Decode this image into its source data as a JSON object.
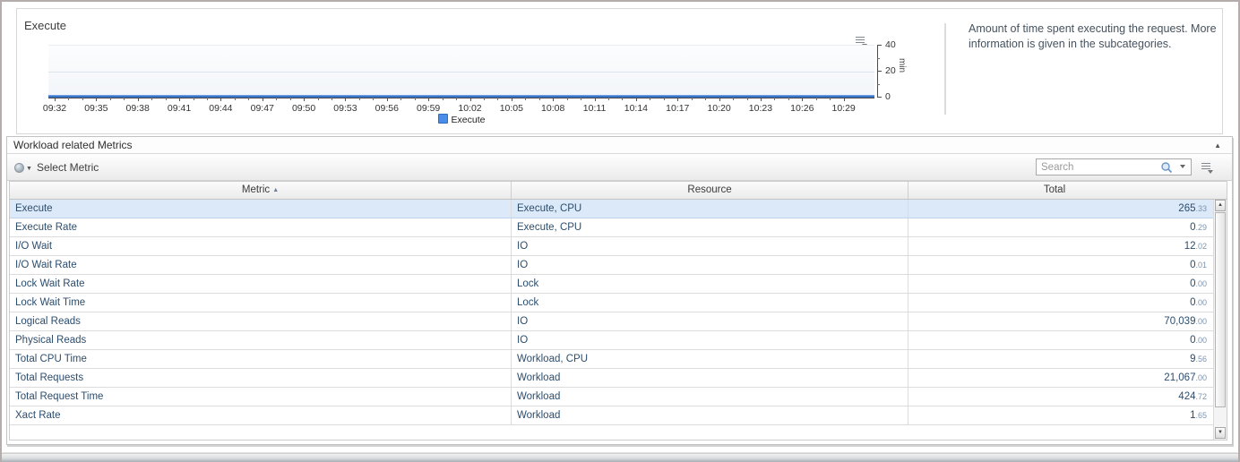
{
  "chart_panel": {
    "title": "Execute",
    "description": "Amount of time spent executing the request. More information is given in the subcategories.",
    "legend": {
      "label": "Execute",
      "color": "#4a8ce8"
    },
    "y_axis": {
      "unit": "min",
      "tick_labels": [
        "40",
        "20",
        "0"
      ]
    },
    "x_axis": {
      "labels": [
        "09:32",
        "09:35",
        "09:38",
        "09:41",
        "09:44",
        "09:47",
        "09:50",
        "09:53",
        "09:56",
        "09:59",
        "10:02",
        "10:05",
        "10:08",
        "10:11",
        "10:14",
        "10:17",
        "10:20",
        "10:23",
        "10:26",
        "10:29"
      ]
    }
  },
  "chart_data": {
    "type": "line",
    "title": "Execute",
    "ylabel": "min",
    "ylim": [
      0,
      40
    ],
    "x": [
      "09:32",
      "09:35",
      "09:38",
      "09:41",
      "09:44",
      "09:47",
      "09:50",
      "09:53",
      "09:56",
      "09:59",
      "10:02",
      "10:05",
      "10:08",
      "10:11",
      "10:14",
      "10:17",
      "10:20",
      "10:23",
      "10:26",
      "10:29"
    ],
    "series": [
      {
        "name": "Execute",
        "values": [
          1,
          1,
          1,
          1,
          1,
          1,
          1,
          1,
          1,
          1,
          1,
          1,
          1,
          1,
          1,
          1,
          1,
          1,
          1,
          1
        ]
      }
    ],
    "legend_position": "bottom",
    "grid": true
  },
  "metrics_panel": {
    "title": "Workload related Metrics",
    "collapse_icon": "▲",
    "toolbar": {
      "select_metric_label": "Select Metric",
      "search_placeholder": "Search"
    },
    "table": {
      "columns": [
        "Metric",
        "Resource",
        "Total"
      ],
      "sort_column": "Metric",
      "sort_indicator": "▲",
      "rows": [
        {
          "metric": "Execute",
          "resource": "Execute, CPU",
          "total": "265.33",
          "selected": true
        },
        {
          "metric": "Execute Rate",
          "resource": "Execute, CPU",
          "total": "0.29",
          "selected": false
        },
        {
          "metric": "I/O Wait",
          "resource": "IO",
          "total": "12.02",
          "selected": false
        },
        {
          "metric": "I/O Wait Rate",
          "resource": "IO",
          "total": "0.01",
          "selected": false
        },
        {
          "metric": "Lock Wait Rate",
          "resource": "Lock",
          "total": "0.00",
          "selected": false
        },
        {
          "metric": "Lock Wait Time",
          "resource": "Lock",
          "total": "0.00",
          "selected": false
        },
        {
          "metric": "Logical Reads",
          "resource": "IO",
          "total": "70,039.00",
          "selected": false
        },
        {
          "metric": "Physical Reads",
          "resource": "IO",
          "total": "0.00",
          "selected": false
        },
        {
          "metric": "Total CPU Time",
          "resource": "Workload, CPU",
          "total": "9.56",
          "selected": false
        },
        {
          "metric": "Total Requests",
          "resource": "Workload",
          "total": "21,067.00",
          "selected": false
        },
        {
          "metric": "Total Request Time",
          "resource": "Workload",
          "total": "424.72",
          "selected": false
        },
        {
          "metric": "Xact Rate",
          "resource": "Workload",
          "total": "1.65",
          "selected": false
        }
      ]
    },
    "scrollbar": {
      "up": "▲",
      "down": "▼"
    }
  },
  "colors": {
    "series_blue": "#3a79d3",
    "selected_row_bg": "#dce9f8",
    "row_text": "#2c4d6e",
    "decimal_text": "#7b95b3"
  }
}
